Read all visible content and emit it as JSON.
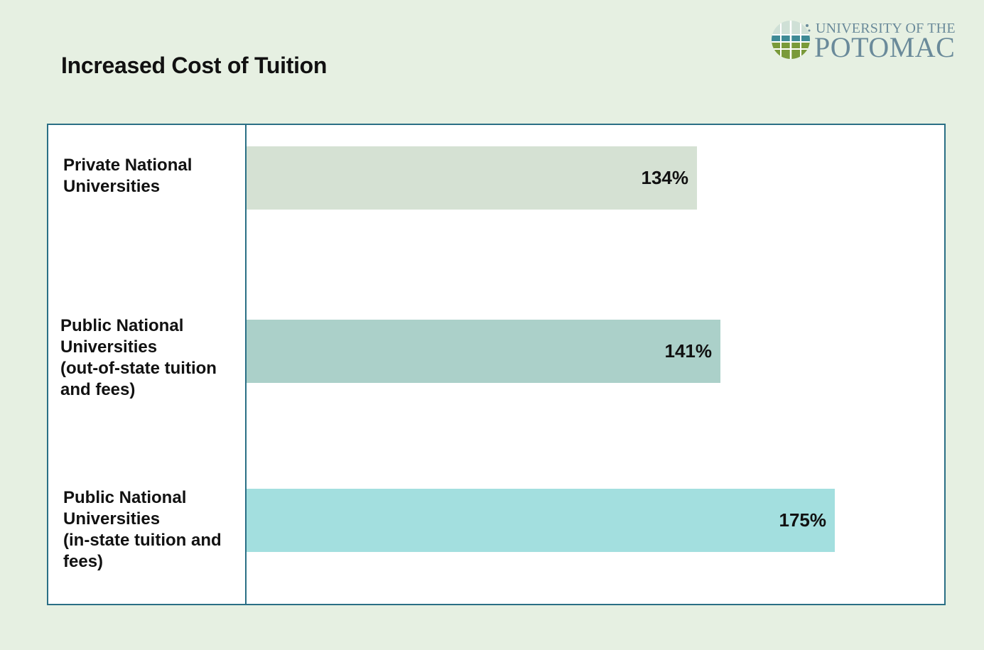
{
  "header": {
    "title": "Increased Cost of Tuition",
    "logo_top": "UNIVERSITY OF THE",
    "logo_main": "POTOMAC"
  },
  "chart_data": {
    "type": "bar",
    "orientation": "horizontal",
    "categories": [
      "Private National\nUniversities",
      "Public National\nUniversities\n(out-of-state tuition\nand fees)",
      "Public National\nUniversities\n(in-state tuition and\nfees)"
    ],
    "values": [
      134,
      141,
      175
    ],
    "value_labels": [
      "134%",
      "141%",
      "175%"
    ],
    "bar_colors": [
      "#d5e1d3",
      "#abd0c9",
      "#a3dfdf"
    ],
    "title": "Increased Cost of Tuition",
    "xlabel": "",
    "ylabel": "",
    "grid": false,
    "legend": "none"
  },
  "colors": {
    "background": "#e6f0e2",
    "panel_border": "#2a6f85",
    "logo": "#6a8a9a"
  }
}
